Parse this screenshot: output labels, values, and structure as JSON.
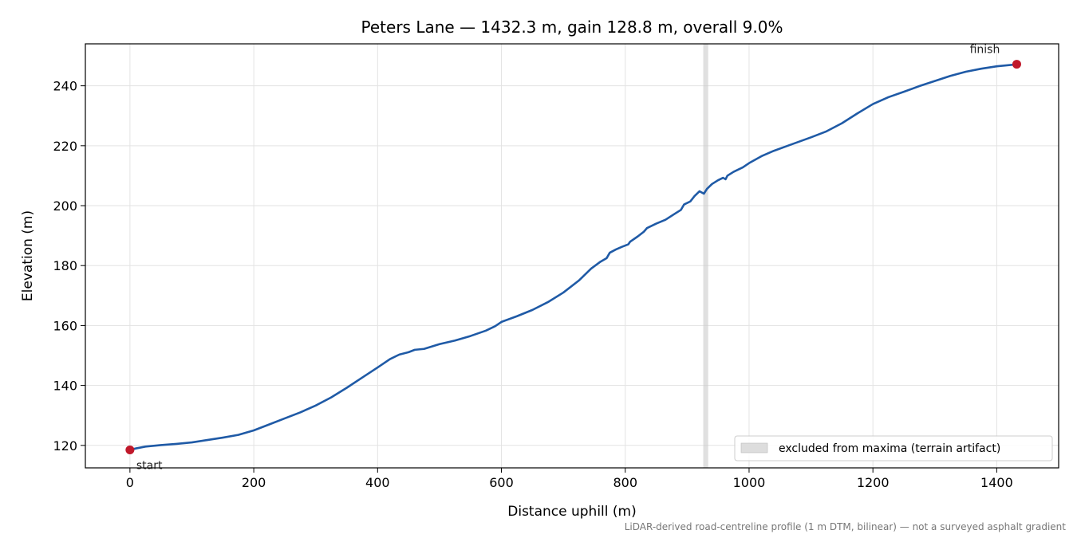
{
  "chart_data": {
    "type": "line",
    "title": "Peters Lane — 1432.3 m, gain 128.8 m, overall 9.0%",
    "xlabel": "Distance uphill (m)",
    "ylabel": "Elevation (m)",
    "xlim": [
      -72,
      1500
    ],
    "ylim": [
      112.5,
      254
    ],
    "x_ticks": [
      0,
      200,
      400,
      600,
      800,
      1000,
      1200,
      1400
    ],
    "y_ticks": [
      120,
      140,
      160,
      180,
      200,
      220,
      240
    ],
    "grid": true,
    "legend_placement": "lower-right",
    "series": [
      {
        "color": "#1f5aa6",
        "points": [
          [
            0,
            118.5
          ],
          [
            10,
            119.0
          ],
          [
            25,
            119.6
          ],
          [
            50,
            120.1
          ],
          [
            75,
            120.5
          ],
          [
            100,
            121.0
          ],
          [
            125,
            121.8
          ],
          [
            150,
            122.6
          ],
          [
            175,
            123.5
          ],
          [
            200,
            125.0
          ],
          [
            225,
            127.0
          ],
          [
            250,
            129.0
          ],
          [
            275,
            131.0
          ],
          [
            300,
            133.3
          ],
          [
            325,
            136.0
          ],
          [
            350,
            139.2
          ],
          [
            375,
            142.6
          ],
          [
            400,
            146.0
          ],
          [
            420,
            148.8
          ],
          [
            435,
            150.3
          ],
          [
            450,
            151.1
          ],
          [
            460,
            151.9
          ],
          [
            475,
            152.2
          ],
          [
            500,
            153.8
          ],
          [
            525,
            155.0
          ],
          [
            550,
            156.5
          ],
          [
            575,
            158.3
          ],
          [
            590,
            159.8
          ],
          [
            600,
            161.2
          ],
          [
            625,
            163.1
          ],
          [
            650,
            165.2
          ],
          [
            675,
            167.8
          ],
          [
            700,
            171.0
          ],
          [
            725,
            175.0
          ],
          [
            745,
            179.0
          ],
          [
            760,
            181.3
          ],
          [
            770,
            182.5
          ],
          [
            775,
            184.3
          ],
          [
            785,
            185.4
          ],
          [
            795,
            186.3
          ],
          [
            805,
            187.1
          ],
          [
            808,
            188.0
          ],
          [
            820,
            189.7
          ],
          [
            830,
            191.3
          ],
          [
            835,
            192.5
          ],
          [
            850,
            194.0
          ],
          [
            865,
            195.3
          ],
          [
            880,
            197.3
          ],
          [
            890,
            198.6
          ],
          [
            895,
            200.4
          ],
          [
            905,
            201.4
          ],
          [
            912,
            203.2
          ],
          [
            920,
            204.8
          ],
          [
            927,
            204.0
          ],
          [
            932,
            205.6
          ],
          [
            940,
            207.2
          ],
          [
            950,
            208.5
          ],
          [
            958,
            209.3
          ],
          [
            962,
            208.8
          ],
          [
            965,
            210.0
          ],
          [
            975,
            211.3
          ],
          [
            990,
            212.8
          ],
          [
            1000,
            214.2
          ],
          [
            1020,
            216.5
          ],
          [
            1040,
            218.3
          ],
          [
            1060,
            219.8
          ],
          [
            1080,
            221.3
          ],
          [
            1100,
            222.8
          ],
          [
            1125,
            224.8
          ],
          [
            1150,
            227.5
          ],
          [
            1175,
            230.8
          ],
          [
            1200,
            233.9
          ],
          [
            1225,
            236.2
          ],
          [
            1250,
            238.0
          ],
          [
            1275,
            239.9
          ],
          [
            1300,
            241.6
          ],
          [
            1325,
            243.3
          ],
          [
            1350,
            244.7
          ],
          [
            1375,
            245.7
          ],
          [
            1400,
            246.5
          ],
          [
            1425,
            247.0
          ],
          [
            1432.3,
            247.2
          ]
        ]
      }
    ],
    "markers": [
      {
        "label": "start",
        "x": 0,
        "y": 118.5,
        "color": "#c0182a"
      },
      {
        "label": "finish",
        "x": 1432.3,
        "y": 247.2,
        "color": "#c0182a"
      }
    ],
    "shaded_band": {
      "x_from": 926,
      "x_to": 934,
      "color": "#cccccc"
    },
    "legend": [
      {
        "label": "excluded from maxima (terrain artifact)",
        "color": "#dddddd"
      }
    ],
    "footnote": "LiDAR-derived road-centreline profile (1 m DTM, bilinear) — not a surveyed asphalt gradient"
  }
}
